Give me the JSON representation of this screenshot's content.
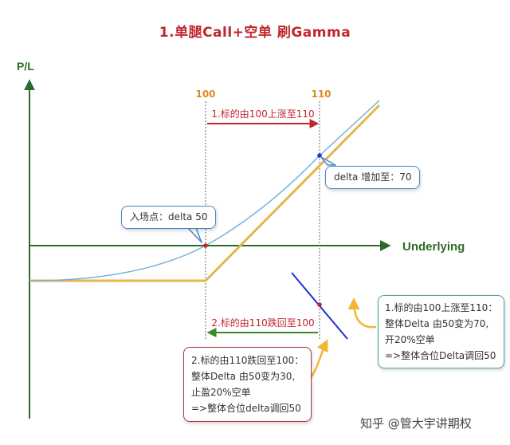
{
  "title": "1.单腿Call+空单  刷Gamma",
  "axes": {
    "y_label": "P/L",
    "x_label": "Underlying",
    "tick_100": "100",
    "tick_110": "110"
  },
  "arrows": {
    "up_label": "1.标的由100上涨至110",
    "down_label": "2.标的由110跌回至100"
  },
  "callouts": {
    "entry": "入场点：delta 50",
    "delta_up": "delta 增加至：70",
    "summary_up": [
      "1.标的由100上涨至110：",
      "整体Delta 由50变为70,",
      "开20%空单",
      "=>整体合位Delta调回50"
    ],
    "summary_down": [
      "2.标的由110跌回至100：",
      "整体Delta 由50变为30,",
      "止盈20%空单",
      "=>整体合位delta调回50"
    ]
  },
  "watermark": "知乎 @管大宇讲期权",
  "colors": {
    "title": "#c0262d",
    "axis": "#2e6b2a",
    "tick": "#e08a1e",
    "option_curve": "#7ab0d8",
    "payoff": "#e6b54a",
    "arrow_up": "#c0262d",
    "arrow_down": "#3a8a2a",
    "short_line": "#1f2fd0",
    "callout_blue": "#4a86c8",
    "callout_teal": "#4ea3a8",
    "callout_red": "#b3343c"
  }
}
